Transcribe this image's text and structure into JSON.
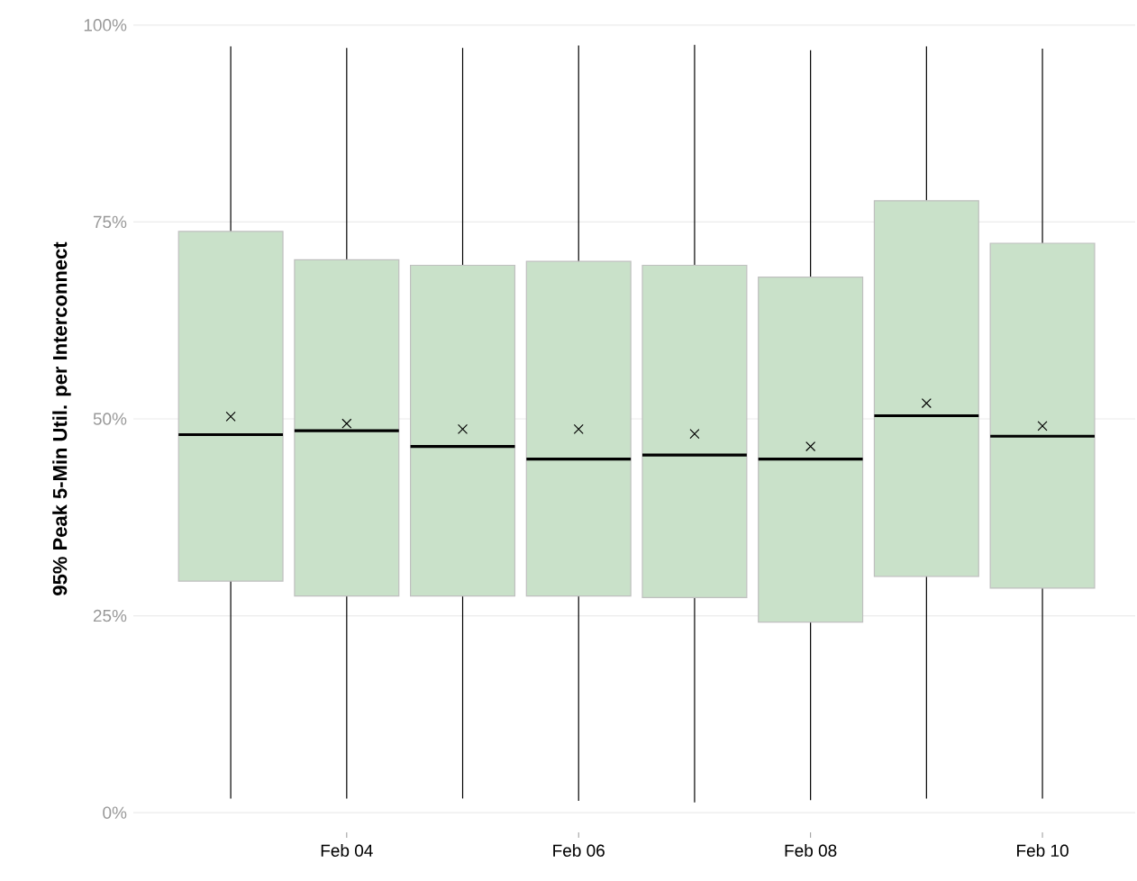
{
  "chart_data": {
    "type": "box",
    "ylabel": "95% Peak 5-Min Util. per Interconnect",
    "categories": [
      null,
      "Feb 04",
      null,
      "Feb 06",
      null,
      "Feb 08",
      null,
      "Feb 10"
    ],
    "boxes": [
      {
        "low": 1.8,
        "q1": 29.4,
        "median": 48.0,
        "q3": 73.8,
        "high": 97.3,
        "mean": 50.3
      },
      {
        "low": 1.8,
        "q1": 27.5,
        "median": 48.5,
        "q3": 70.2,
        "high": 97.1,
        "mean": 49.4
      },
      {
        "low": 1.8,
        "q1": 27.5,
        "median": 46.5,
        "q3": 69.5,
        "high": 97.1,
        "mean": 48.7
      },
      {
        "low": 1.5,
        "q1": 27.5,
        "median": 44.9,
        "q3": 70.0,
        "high": 97.4,
        "mean": 48.7
      },
      {
        "low": 1.3,
        "q1": 27.3,
        "median": 45.4,
        "q3": 69.5,
        "high": 97.5,
        "mean": 48.1
      },
      {
        "low": 1.6,
        "q1": 24.2,
        "median": 44.9,
        "q3": 68.0,
        "high": 96.8,
        "mean": 46.5
      },
      {
        "low": 1.8,
        "q1": 30.0,
        "median": 50.4,
        "q3": 77.7,
        "high": 97.3,
        "mean": 52.0
      },
      {
        "low": 1.8,
        "q1": 28.5,
        "median": 47.8,
        "q3": 72.3,
        "high": 97.0,
        "mean": 49.1
      }
    ],
    "color": "#c9e1c9",
    "marker": "cross",
    "ylim": [
      0,
      100
    ],
    "yticks": [
      {
        "value": 0,
        "label": "0%"
      },
      {
        "value": 25,
        "label": "25%"
      },
      {
        "value": 50,
        "label": "50%"
      },
      {
        "value": 75,
        "label": "75%"
      },
      {
        "value": 100,
        "label": "100%"
      }
    ],
    "grid": "y"
  }
}
